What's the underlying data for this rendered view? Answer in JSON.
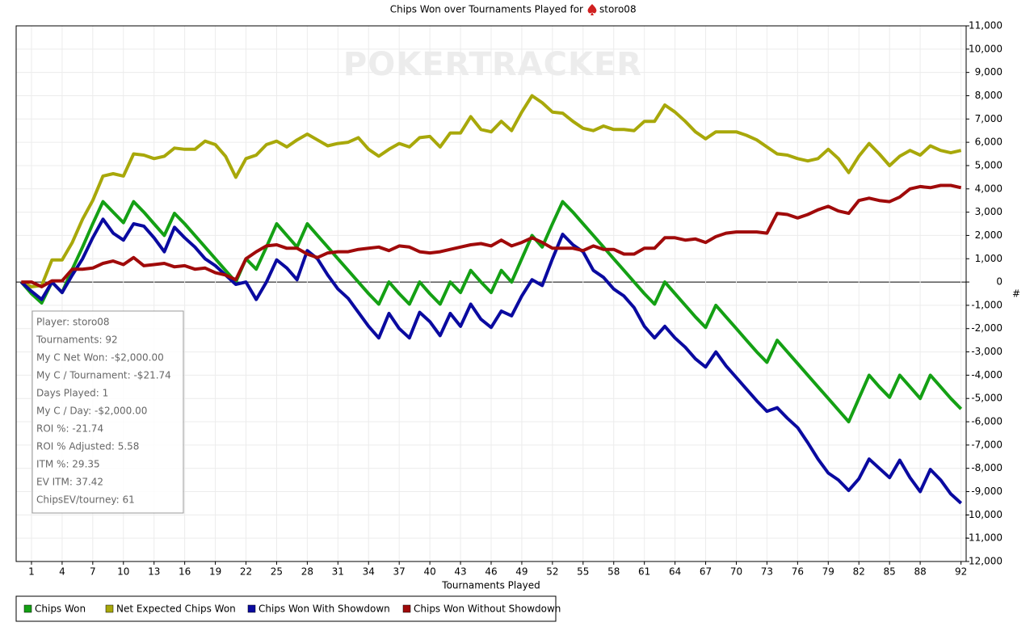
{
  "chart_data": {
    "type": "line",
    "title": "Chips Won over Tournaments Played for",
    "player": "storo08",
    "watermark": "POKERTRACKER",
    "x_label": "Tournaments Played",
    "y_label": "#",
    "x": [
      0,
      1,
      2,
      3,
      4,
      5,
      6,
      7,
      8,
      9,
      10,
      11,
      12,
      13,
      14,
      15,
      16,
      17,
      18,
      19,
      20,
      21,
      22,
      23,
      24,
      25,
      26,
      27,
      28,
      29,
      30,
      31,
      32,
      33,
      34,
      35,
      36,
      37,
      38,
      39,
      40,
      41,
      42,
      43,
      44,
      45,
      46,
      47,
      48,
      49,
      50,
      51,
      52,
      53,
      54,
      55,
      56,
      57,
      58,
      59,
      60,
      61,
      62,
      63,
      64,
      65,
      66,
      67,
      68,
      69,
      70,
      71,
      72,
      73,
      74,
      75,
      76,
      77,
      78,
      79,
      80,
      81,
      82,
      83,
      84,
      85,
      86,
      87,
      88,
      89,
      90,
      91,
      92
    ],
    "xlim": [
      -0.5,
      92.5
    ],
    "xticks": [
      1,
      4,
      7,
      10,
      13,
      16,
      19,
      22,
      25,
      28,
      31,
      34,
      37,
      40,
      43,
      46,
      49,
      52,
      55,
      58,
      61,
      64,
      67,
      70,
      73,
      76,
      79,
      82,
      85,
      88,
      92
    ],
    "ylim": [
      -12000,
      11000
    ],
    "yticks": [
      {
        "value": -12000,
        "label": "-12,000"
      },
      {
        "value": -11000,
        "label": "-11,000"
      },
      {
        "value": -10000,
        "label": "-10,000"
      },
      {
        "value": -9000,
        "label": "-9,000"
      },
      {
        "value": -8000,
        "label": "-8,000"
      },
      {
        "value": -7000,
        "label": "-7,000"
      },
      {
        "value": -6000,
        "label": "-6,000"
      },
      {
        "value": -5000,
        "label": "-5,000"
      },
      {
        "value": -4000,
        "label": "-4,000"
      },
      {
        "value": -3000,
        "label": "-3,000"
      },
      {
        "value": -2000,
        "label": "-2,000"
      },
      {
        "value": -1000,
        "label": "-1,000"
      },
      0,
      {
        "value": 1000,
        "label": "1,000"
      },
      {
        "value": 2000,
        "label": "2,000"
      },
      {
        "value": 3000,
        "label": "3,000"
      },
      {
        "value": 4000,
        "label": "4,000"
      },
      {
        "value": 5000,
        "label": "5,000"
      },
      {
        "value": 6000,
        "label": "6,000"
      },
      {
        "value": 7000,
        "label": "7,000"
      },
      {
        "value": 8000,
        "label": "8,000"
      },
      {
        "value": 9000,
        "label": "9,000"
      },
      {
        "value": 10000,
        "label": "10,000"
      },
      {
        "value": 11000,
        "label": "11,000"
      }
    ],
    "grid": true,
    "series": [
      {
        "name": "Chips Won",
        "color": "#14a014",
        "values": [
          0,
          -500,
          -900,
          0,
          -450,
          550,
          1500,
          2500,
          3450,
          3000,
          2550,
          3450,
          3000,
          2500,
          2000,
          2950,
          2500,
          2000,
          1500,
          1000,
          500,
          0,
          1000,
          550,
          1500,
          2500,
          2000,
          1500,
          2500,
          2000,
          1500,
          1000,
          500,
          0,
          -500,
          -950,
          0,
          -500,
          -950,
          0,
          -500,
          -950,
          0,
          -450,
          500,
          0,
          -450,
          500,
          0,
          1000,
          2000,
          1500,
          2500,
          3450,
          3000,
          2500,
          2000,
          1500,
          1000,
          500,
          0,
          -500,
          -950,
          0,
          -500,
          -1000,
          -1500,
          -1950,
          -1000,
          -1500,
          -2000,
          -2500,
          -3000,
          -3450,
          -2500,
          -3000,
          -3500,
          -4000,
          -4500,
          -5000,
          -5500,
          -6000,
          -5000,
          -4000,
          -4500,
          -4950,
          -4000,
          -4500,
          -5000,
          -4000,
          -4500,
          -5000,
          -5450
        ]
      },
      {
        "name": "Net Expected Chips Won",
        "color": "#a8a80a",
        "values": [
          0,
          -200,
          -150,
          950,
          950,
          1700,
          2700,
          3500,
          4550,
          4650,
          4550,
          5500,
          5450,
          5300,
          5400,
          5750,
          5700,
          5700,
          6050,
          5900,
          5400,
          4500,
          5300,
          5450,
          5900,
          6050,
          5800,
          6100,
          6350,
          6100,
          5850,
          5950,
          6000,
          6200,
          5700,
          5400,
          5700,
          5950,
          5800,
          6200,
          6250,
          5800,
          6400,
          6400,
          7100,
          6550,
          6450,
          6900,
          6500,
          7300,
          8000,
          7700,
          7300,
          7250,
          6900,
          6600,
          6500,
          6700,
          6550,
          6550,
          6500,
          6900,
          6900,
          7600,
          7300,
          6900,
          6450,
          6150,
          6450,
          6450,
          6450,
          6300,
          6100,
          5800,
          5500,
          5450,
          5300,
          5200,
          5300,
          5700,
          5300,
          4700,
          5400,
          5950,
          5500,
          5000,
          5400,
          5650,
          5450,
          5850,
          5650,
          5550,
          5650
        ]
      },
      {
        "name": "Chips Won With Showdown",
        "color": "#0a0aa0",
        "values": [
          0,
          -400,
          -750,
          0,
          -450,
          300,
          1000,
          1900,
          2700,
          2100,
          1800,
          2500,
          2400,
          1900,
          1300,
          2350,
          1900,
          1500,
          1000,
          700,
          300,
          -100,
          0,
          -750,
          0,
          950,
          600,
          100,
          1350,
          1000,
          300,
          -300,
          -700,
          -1300,
          -1900,
          -2400,
          -1350,
          -2000,
          -2400,
          -1300,
          -1700,
          -2300,
          -1350,
          -1900,
          -950,
          -1600,
          -1950,
          -1250,
          -1450,
          -600,
          100,
          -150,
          1000,
          2050,
          1600,
          1300,
          500,
          200,
          -300,
          -600,
          -1100,
          -1900,
          -2400,
          -1900,
          -2400,
          -2800,
          -3300,
          -3650,
          -3000,
          -3600,
          -4100,
          -4600,
          -5100,
          -5550,
          -5400,
          -5850,
          -6250,
          -6900,
          -7600,
          -8200,
          -8500,
          -8950,
          -8450,
          -7600,
          -8000,
          -8400,
          -7650,
          -8400,
          -9000,
          -8050,
          -8500,
          -9100,
          -9500
        ]
      },
      {
        "name": "Chips Won Without Showdown",
        "color": "#a00a0a",
        "values": [
          0,
          0,
          -200,
          50,
          50,
          550,
          550,
          600,
          800,
          900,
          750,
          1050,
          700,
          750,
          800,
          650,
          700,
          550,
          600,
          400,
          300,
          100,
          1000,
          1300,
          1550,
          1600,
          1450,
          1450,
          1200,
          1050,
          1250,
          1300,
          1300,
          1400,
          1450,
          1500,
          1350,
          1550,
          1500,
          1300,
          1250,
          1300,
          1400,
          1500,
          1600,
          1650,
          1550,
          1800,
          1550,
          1700,
          1900,
          1700,
          1450,
          1450,
          1450,
          1350,
          1550,
          1400,
          1400,
          1200,
          1200,
          1450,
          1450,
          1900,
          1900,
          1800,
          1850,
          1700,
          1950,
          2100,
          2150,
          2150,
          2150,
          2100,
          2950,
          2900,
          2750,
          2900,
          3100,
          3250,
          3050,
          2950,
          3500,
          3600,
          3500,
          3450,
          3650,
          4000,
          4100,
          4050,
          4150,
          4150,
          4050
        ]
      }
    ]
  },
  "stats_box": [
    "Player: storo08",
    "Tournaments: 92",
    "My C Net Won: -$2,000.00",
    "My C / Tournament: -$21.74",
    "Days Played: 1",
    "My C / Day: -$2,000.00",
    "ROI %: -21.74",
    "ROI % Adjusted: 5.58",
    "ITM %: 29.35",
    "EV ITM: 37.42",
    "ChipsEV/tourney: 61"
  ]
}
